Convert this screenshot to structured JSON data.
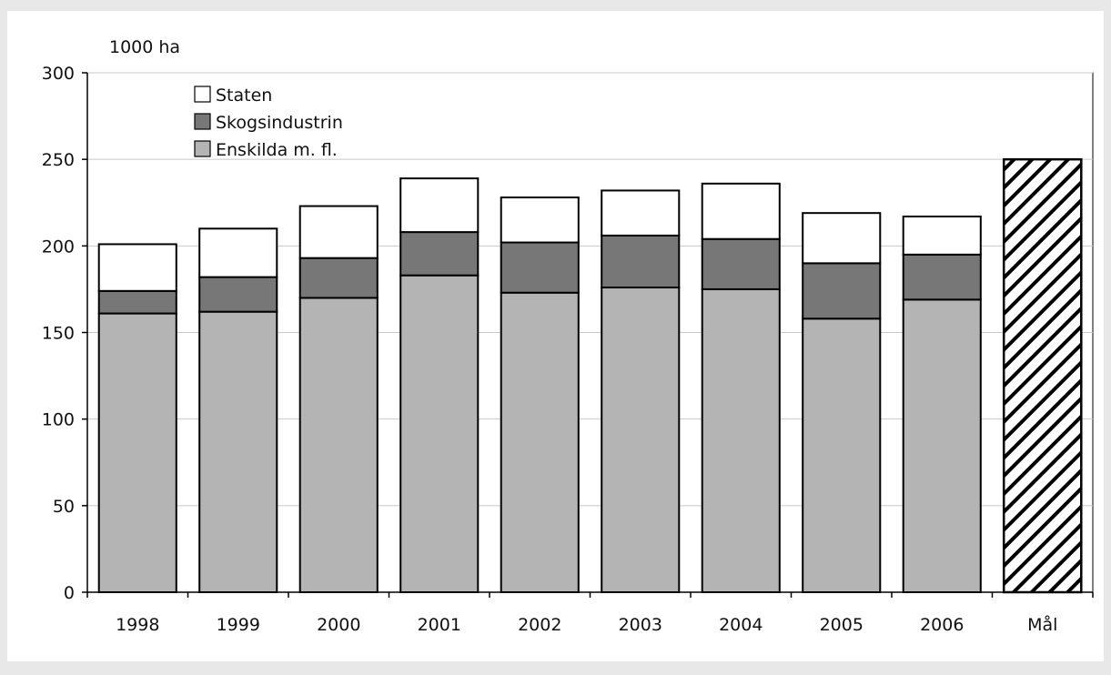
{
  "chart_data": {
    "type": "bar",
    "stacked": true,
    "unit_label": "1000 ha",
    "categories": [
      "1998",
      "1999",
      "2000",
      "2001",
      "2002",
      "2003",
      "2004",
      "2005",
      "2006",
      "Mål"
    ],
    "series": [
      {
        "name": "Enskilda m. fl.",
        "color": "#b4b4b4",
        "values": [
          161,
          162,
          170,
          183,
          173,
          176,
          175,
          158,
          169,
          null
        ]
      },
      {
        "name": "Skogsindustrin",
        "color": "#777777",
        "values": [
          13,
          20,
          23,
          25,
          29,
          30,
          29,
          32,
          26,
          null
        ]
      },
      {
        "name": "Staten",
        "color": "#ffffff",
        "values": [
          27,
          28,
          30,
          31,
          26,
          26,
          32,
          29,
          22,
          null
        ]
      }
    ],
    "target": {
      "category": "Mål",
      "value": 250,
      "fill": "hatched"
    },
    "ylim": [
      0,
      300
    ],
    "yticks": [
      0,
      50,
      100,
      150,
      200,
      250,
      300
    ],
    "ytick_labels": [
      "0",
      "50",
      "100",
      "150",
      "200",
      "250",
      "300"
    ],
    "legend": {
      "placement": "top-left",
      "order": [
        "Staten",
        "Skogsindustrin",
        "Enskilda m. fl."
      ]
    },
    "grid": true,
    "colors": {
      "page_background": "#e8e8e8",
      "plot_background": "#ffffff",
      "gridline": "#c8c8c8",
      "outline": "#000000"
    }
  }
}
